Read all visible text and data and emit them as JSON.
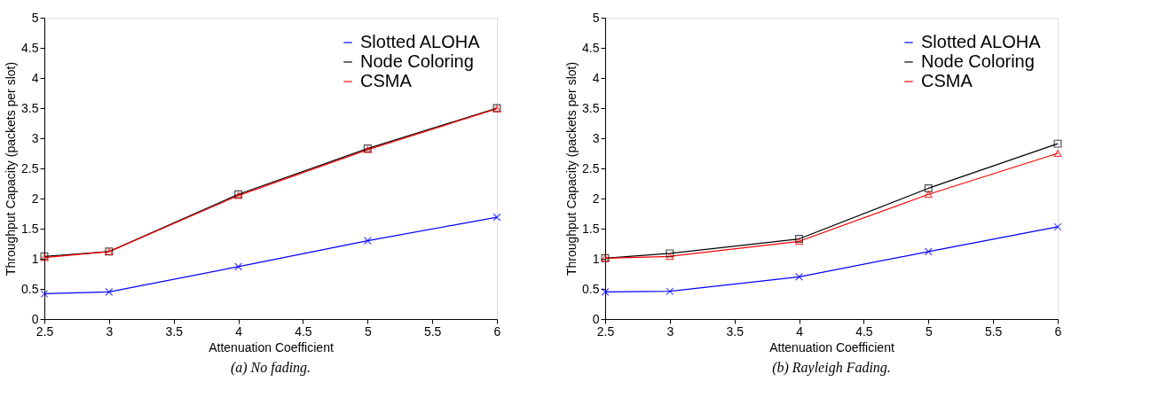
{
  "chart_data": [
    {
      "type": "line",
      "title": "(a) No fading.",
      "xlabel": "Attenuation Coefficient",
      "ylabel": "Throughput Capacity (packets per slot)",
      "x": [
        2.5,
        3,
        4,
        5,
        6
      ],
      "series": [
        {
          "name": "Slotted ALOHA",
          "color": "#0000ff",
          "marker": "cross",
          "values": [
            0.42,
            0.45,
            0.87,
            1.3,
            1.69
          ]
        },
        {
          "name": "Node Coloring",
          "color": "#000000",
          "marker": "square",
          "values": [
            1.04,
            1.12,
            2.07,
            2.83,
            3.5
          ]
        },
        {
          "name": "CSMA",
          "color": "#ff0000",
          "marker": "triangle",
          "values": [
            1.02,
            1.12,
            2.05,
            2.81,
            3.49
          ]
        }
      ],
      "xlim": [
        2.5,
        6
      ],
      "xticks": [
        2.5,
        3,
        3.5,
        4,
        4.5,
        5,
        5.5,
        6
      ],
      "ylim": [
        0,
        5
      ],
      "yticks": [
        0,
        0.5,
        1,
        1.5,
        2,
        2.5,
        3,
        3.5,
        4,
        4.5,
        5
      ],
      "grid": false,
      "legend": "top right",
      "line_style": "solid"
    },
    {
      "type": "line",
      "title": "(b) Rayleigh Fading.",
      "xlabel": "Attenuation Coefficient",
      "ylabel": "Throughput Capacity (packets per slot)",
      "x": [
        2.5,
        3,
        4,
        5,
        6
      ],
      "series": [
        {
          "name": "Slotted ALOHA",
          "color": "#0000ff",
          "marker": "cross",
          "values": [
            0.45,
            0.46,
            0.7,
            1.12,
            1.53
          ]
        },
        {
          "name": "Node Coloring",
          "color": "#000000",
          "marker": "square",
          "values": [
            1.01,
            1.09,
            1.33,
            2.17,
            2.91
          ]
        },
        {
          "name": "CSMA",
          "color": "#ff0000",
          "marker": "triangle",
          "values": [
            1.01,
            1.04,
            1.29,
            2.07,
            2.75
          ]
        }
      ],
      "xlim": [
        2.5,
        6
      ],
      "xticks": [
        2.5,
        3,
        3.5,
        4,
        4.5,
        5,
        5.5,
        6
      ],
      "ylim": [
        0,
        5
      ],
      "yticks": [
        0,
        0.5,
        1,
        1.5,
        2,
        2.5,
        3,
        3.5,
        4,
        4.5,
        5
      ],
      "grid": false,
      "legend": "top right",
      "line_style": "solid"
    }
  ]
}
